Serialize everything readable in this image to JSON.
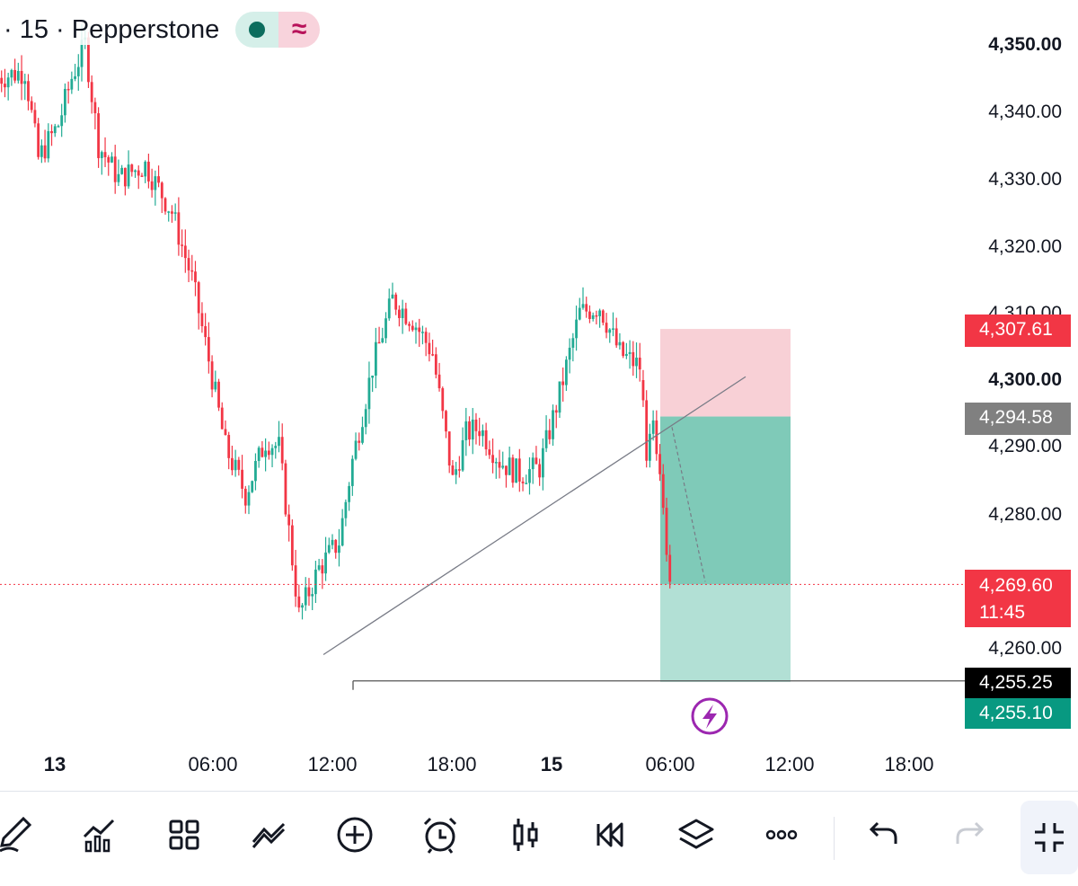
{
  "header": {
    "title": "· 15 · Pepperstone",
    "wave_symbol": "≈"
  },
  "price_axis": {
    "labels": [
      "4,350.00",
      "4,340.00",
      "4,330.00",
      "4,320.00",
      "4,310.00",
      "4,300.00",
      "4,290.00",
      "4,280.00",
      "4,260.00"
    ],
    "bold": [
      "4,350.00",
      "4,300.00"
    ]
  },
  "price_tags": {
    "stop_loss": "4,307.61",
    "entry": "4,294.58",
    "current_price": "4,269.60",
    "countdown": "11:45",
    "horizontal_line": "4,255.25",
    "take_profit": "4,255.10"
  },
  "time_axis": {
    "labels": [
      "13",
      "06:00",
      "12:00",
      "18:00",
      "15",
      "06:00",
      "12:00",
      "18:00"
    ],
    "bold": [
      "13",
      "15"
    ]
  },
  "colors": {
    "bull": "#22ab94",
    "bear": "#f23645",
    "stop_zone": "#f8d0d6",
    "profit_zone_dark": "#7fcab8",
    "profit_zone_light": "#b2e0d5",
    "entry_tag": "#808080",
    "line_tag": "#000000",
    "tp_tag": "#089981"
  },
  "chart_data": {
    "type": "candlestick",
    "title": "",
    "ylim": [
      4250,
      4355
    ],
    "position": {
      "side": "short",
      "entry": 4294.58,
      "stop": 4307.61,
      "target": 4255.1
    },
    "horizontal_line": 4255.25,
    "current_price": 4269.6,
    "trendline": {
      "from": 4262.5,
      "to": 4300.5
    }
  },
  "toolbar": {
    "items": [
      "pencil-icon",
      "chart-bars-icon",
      "grid-icon",
      "indicators-icon",
      "add-icon",
      "alarm-icon",
      "candles-icon",
      "replay-icon",
      "layers-icon",
      "more-icon",
      "undo-icon",
      "redo-icon",
      "fullscreen-icon"
    ]
  }
}
